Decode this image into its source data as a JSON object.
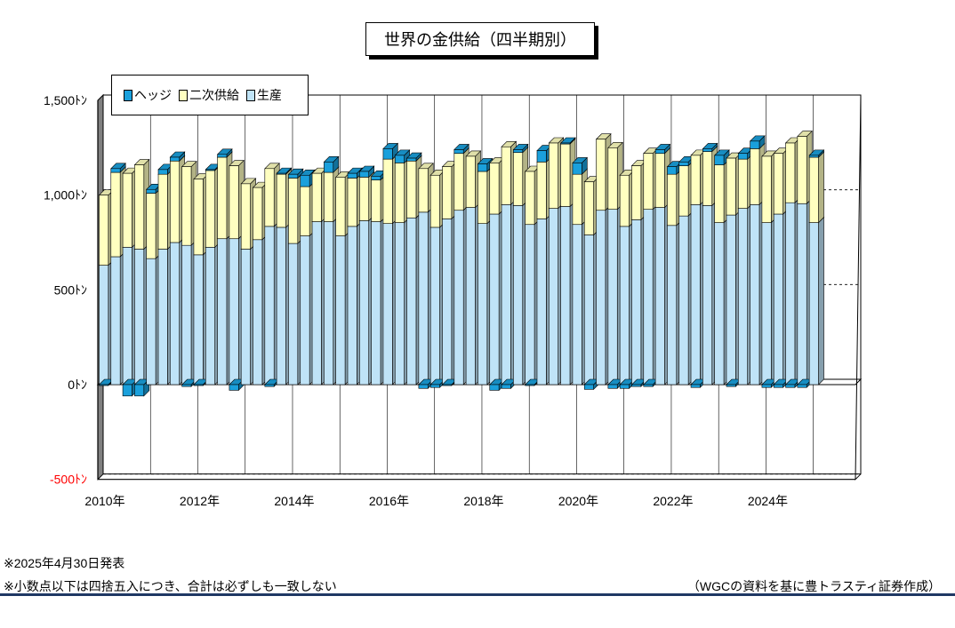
{
  "chart_data": {
    "type": "bar",
    "stacked": true,
    "three_d": true,
    "title": "世界の金供給（四半期別）",
    "x_labels": [
      "2010年",
      "2012年",
      "2014年",
      "2016年",
      "2018年",
      "2020年",
      "2022年",
      "2024年"
    ],
    "y_ticks": [
      "1,500ﾄﾝ",
      "1,000ﾄﾝ",
      "500ﾄﾝ",
      "0ﾄﾝ",
      "-500ﾄﾝ"
    ],
    "y_tick_values": [
      1500,
      1000,
      500,
      0,
      -500
    ],
    "ylim": [
      -500,
      1500
    ],
    "legend_position": "top-left",
    "series": [
      {
        "name": "生産",
        "color": "#bfe3f7",
        "values": [
          630,
          675,
          725,
          715,
          665,
          715,
          750,
          735,
          685,
          725,
          770,
          770,
          715,
          765,
          835,
          830,
          745,
          785,
          860,
          860,
          785,
          835,
          865,
          860,
          850,
          855,
          880,
          910,
          830,
          875,
          920,
          935,
          850,
          900,
          950,
          945,
          845,
          875,
          930,
          940,
          845,
          790,
          920,
          925,
          835,
          870,
          925,
          935,
          840,
          890,
          950,
          945,
          855,
          895,
          930,
          950,
          855,
          900,
          960,
          955,
          855
        ]
      },
      {
        "name": "二次供給",
        "color": "#ffffc0",
        "values": [
          370,
          445,
          390,
          445,
          345,
          395,
          430,
          415,
          400,
          405,
          430,
          385,
          345,
          275,
          305,
          280,
          345,
          260,
          255,
          260,
          310,
          255,
          230,
          220,
          340,
          315,
          300,
          230,
          275,
          275,
          300,
          270,
          275,
          270,
          305,
          280,
          280,
          300,
          345,
          330,
          265,
          280,
          375,
          325,
          270,
          285,
          295,
          285,
          270,
          265,
          260,
          285,
          305,
          300,
          260,
          295,
          350,
          320,
          315,
          355,
          345
        ]
      },
      {
        "name": "ヘッジ",
        "color": "#1aa0dc",
        "values": [
          -5,
          20,
          -60,
          -60,
          20,
          25,
          20,
          -10,
          -5,
          5,
          15,
          -30,
          0,
          0,
          -10,
          5,
          20,
          60,
          0,
          55,
          0,
          25,
          30,
          20,
          55,
          40,
          15,
          -20,
          -15,
          -5,
          20,
          0,
          40,
          -30,
          -20,
          15,
          -5,
          60,
          0,
          5,
          60,
          -25,
          0,
          -20,
          -20,
          -10,
          -10,
          20,
          40,
          20,
          -15,
          15,
          50,
          -10,
          30,
          40,
          -15,
          -15,
          -15,
          -15,
          10
        ]
      }
    ]
  },
  "notes": {
    "date": "※2025年4月30日発表",
    "rounding": "※小数点以下は四捨五入につき、合計は必ずしも一致しない",
    "source": "（WGCの資料を基に豊トラスティ証券作成）"
  }
}
